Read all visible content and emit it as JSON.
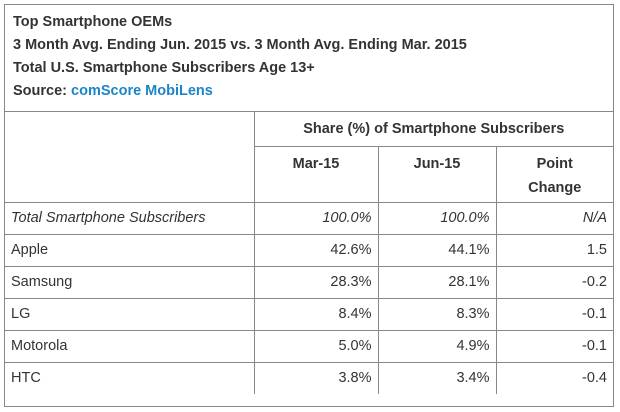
{
  "header": {
    "title": "Top Smartphone OEMs",
    "subtitle": "3 Month Avg. Ending Jun. 2015 vs. 3 Month Avg. Ending Mar. 2015",
    "population": "Total U.S. Smartphone Subscribers Age 13+",
    "source_label": "Source:",
    "source_value": "comScore MobiLens"
  },
  "chart_data": {
    "type": "table",
    "title": "Top Smartphone OEMs",
    "group_header": "Share (%) of Smartphone Subscribers",
    "columns": [
      "Mar-15",
      "Jun-15",
      "Point Change"
    ],
    "rows": [
      {
        "label": "Total Smartphone Subscribers",
        "mar15": "100.0%",
        "jun15": "100.0%",
        "change": "N/A"
      },
      {
        "label": "Apple",
        "mar15": "42.6%",
        "jun15": "44.1%",
        "change": "1.5"
      },
      {
        "label": "Samsung",
        "mar15": "28.3%",
        "jun15": "28.1%",
        "change": "-0.2"
      },
      {
        "label": "LG",
        "mar15": "8.4%",
        "jun15": "8.3%",
        "change": "-0.1"
      },
      {
        "label": "Motorola",
        "mar15": "5.0%",
        "jun15": "4.9%",
        "change": "-0.1"
      },
      {
        "label": "HTC",
        "mar15": "3.8%",
        "jun15": "3.4%",
        "change": "-0.4"
      }
    ]
  },
  "table": {
    "group_header": "Share (%) of Smartphone Subscribers",
    "col_mar": "Mar-15",
    "col_jun": "Jun-15",
    "col_change_line1": "Point",
    "col_change_line2": "Change"
  }
}
